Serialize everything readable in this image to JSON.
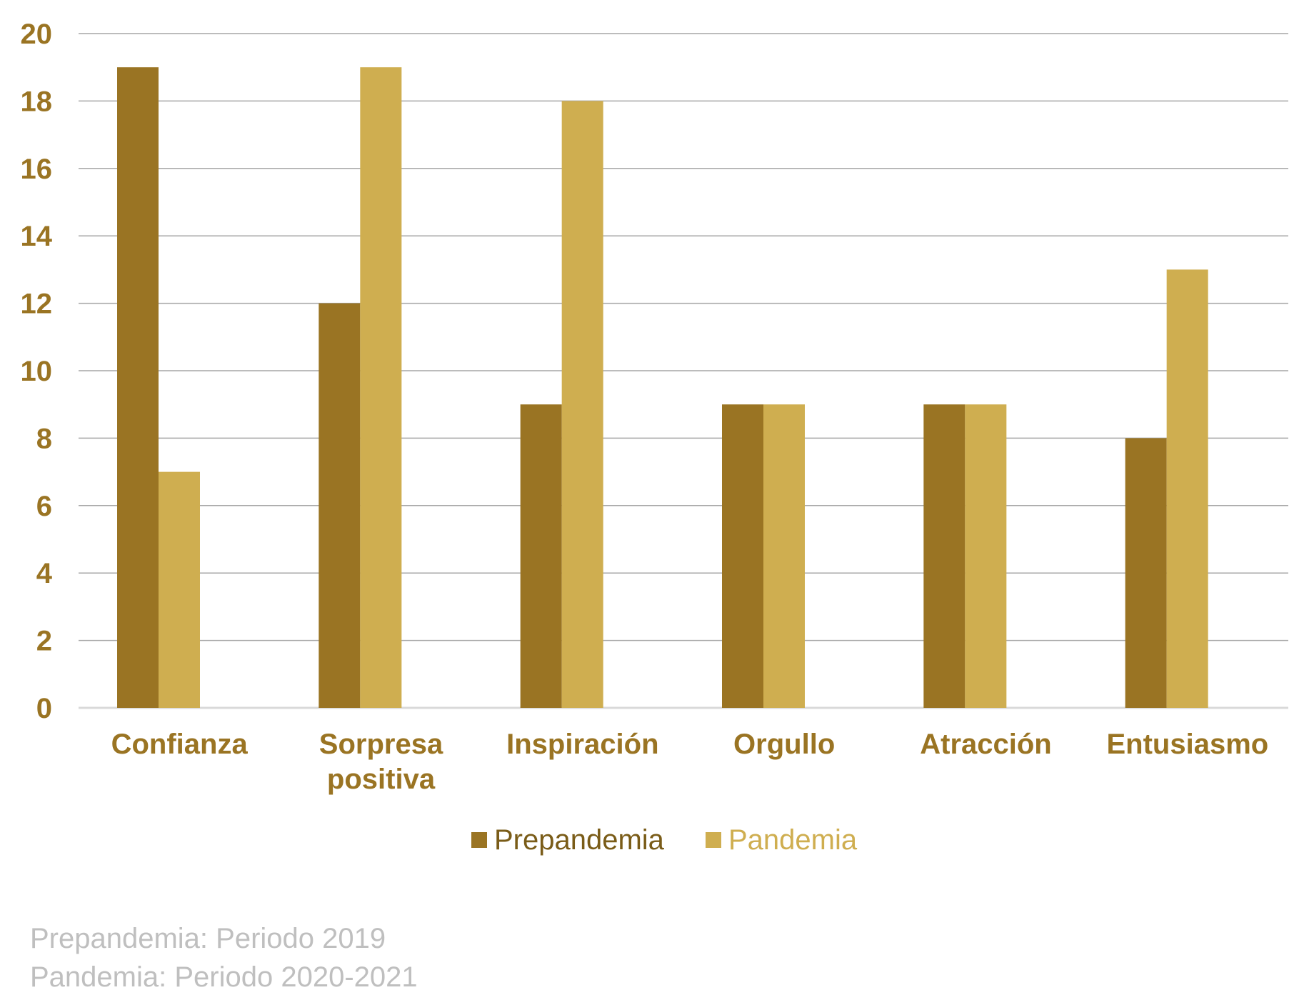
{
  "chart_data": {
    "type": "bar",
    "title": "",
    "xlabel": "",
    "ylabel": "",
    "categories": [
      [
        "Confianza"
      ],
      [
        "Sorpresa",
        "positiva"
      ],
      [
        "Inspiración"
      ],
      [
        "Orgullo"
      ],
      [
        "Atracción"
      ],
      [
        "Entusiasmo"
      ]
    ],
    "series": [
      {
        "name": "Prepandemia",
        "color": "#9a7423",
        "values": [
          19,
          12,
          9,
          9,
          9,
          8
        ]
      },
      {
        "name": "Pandemia",
        "color": "#cfae50",
        "values": [
          7,
          19,
          18,
          9,
          9,
          13
        ]
      }
    ],
    "ylim": [
      0,
      20
    ],
    "yticks": [
      0,
      2,
      4,
      6,
      8,
      10,
      12,
      14,
      16,
      18,
      20
    ],
    "grid": true,
    "legend_position": "bottom",
    "colors": {
      "axis_text": "#9a7423",
      "gridline": "#a6a6a6",
      "baseline": "#d9d9d9",
      "footnote": "#bfbfbf"
    }
  },
  "footnotes": [
    "Prepandemia: Periodo 2019",
    "Pandemia: Periodo 2020-2021"
  ]
}
